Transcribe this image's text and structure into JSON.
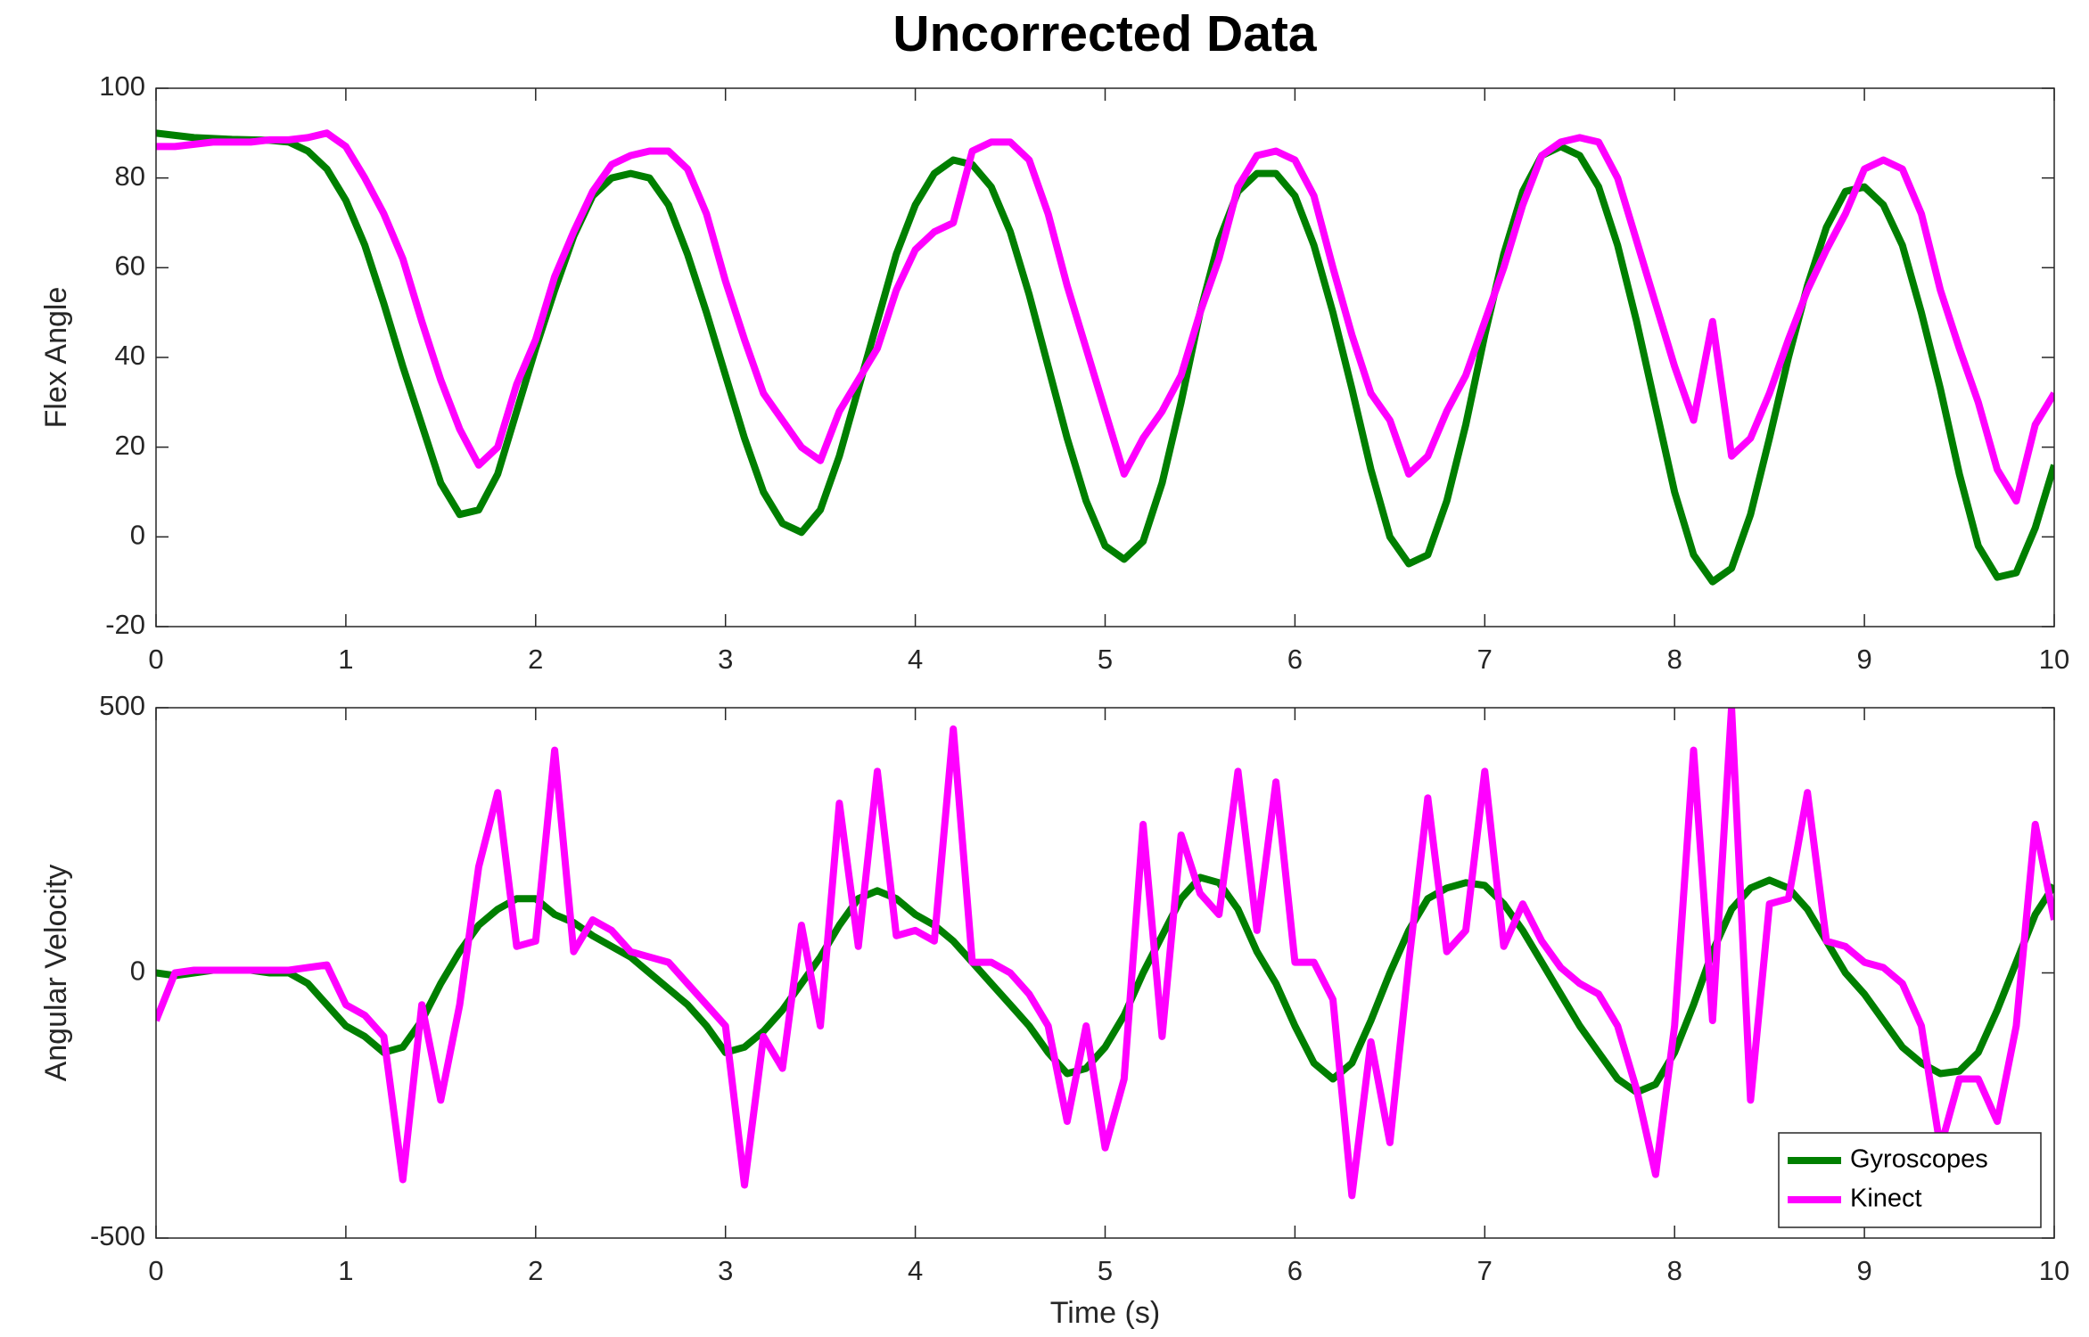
{
  "chart_data": [
    {
      "type": "line",
      "title": "Uncorrected Data",
      "ylabel": "Flex Angle",
      "x": [
        0,
        0.1,
        0.2,
        0.3,
        0.4,
        0.5,
        0.6,
        0.7,
        0.8,
        0.9,
        1,
        1.1,
        1.2,
        1.3,
        1.4,
        1.5,
        1.6,
        1.7,
        1.8,
        1.9,
        2,
        2.1,
        2.2,
        2.3,
        2.4,
        2.5,
        2.6,
        2.7,
        2.8,
        2.9,
        3,
        3.1,
        3.2,
        3.3,
        3.4,
        3.5,
        3.6,
        3.7,
        3.8,
        3.9,
        4,
        4.1,
        4.2,
        4.3,
        4.4,
        4.5,
        4.6,
        4.7,
        4.8,
        4.9,
        5,
        5.1,
        5.2,
        5.3,
        5.4,
        5.5,
        5.6,
        5.7,
        5.8,
        5.9,
        6,
        6.1,
        6.2,
        6.3,
        6.4,
        6.5,
        6.6,
        6.7,
        6.8,
        6.9,
        7,
        7.1,
        7.2,
        7.3,
        7.4,
        7.5,
        7.6,
        7.7,
        7.8,
        7.9,
        8,
        8.1,
        8.2,
        8.3,
        8.4,
        8.5,
        8.6,
        8.7,
        8.8,
        8.9,
        9,
        9.1,
        9.2,
        9.3,
        9.4,
        9.5,
        9.6,
        9.7,
        9.8,
        9.9,
        10
      ],
      "series": [
        {
          "name": "Gyroscopes",
          "color": "#007f00",
          "values": [
            90,
            89.5,
            89,
            88.8,
            88.6,
            88.5,
            88.4,
            88,
            86,
            82,
            75,
            65,
            52,
            38,
            25,
            12,
            5,
            6,
            14,
            28,
            42,
            55,
            67,
            76,
            80,
            81,
            80,
            74,
            63,
            50,
            36,
            22,
            10,
            3,
            1,
            6,
            18,
            33,
            48,
            63,
            74,
            81,
            84,
            83,
            78,
            68,
            54,
            38,
            22,
            8,
            -2,
            -5,
            -1,
            12,
            30,
            50,
            66,
            77,
            81,
            81,
            76,
            65,
            50,
            33,
            15,
            0,
            -6,
            -4,
            8,
            25,
            45,
            63,
            77,
            85,
            87,
            85,
            78,
            65,
            48,
            29,
            10,
            -4,
            -10,
            -7,
            5,
            22,
            40,
            56,
            69,
            77,
            78,
            74,
            65,
            50,
            33,
            14,
            -2,
            -9,
            -8,
            2,
            16
          ]
        },
        {
          "name": "Kinect",
          "color": "#ff00ff",
          "values": [
            87,
            87,
            87.5,
            88,
            88,
            88,
            88.5,
            88.5,
            89,
            90,
            87,
            80,
            72,
            62,
            48,
            35,
            24,
            16,
            20,
            34,
            44,
            58,
            68,
            77,
            83,
            85,
            86,
            86,
            82,
            72,
            57,
            44,
            32,
            26,
            20,
            17,
            28,
            35,
            42,
            55,
            64,
            68,
            70,
            86,
            88,
            88,
            84,
            72,
            56,
            42,
            28,
            14,
            22,
            28,
            36,
            50,
            62,
            78,
            85,
            86,
            84,
            76,
            60,
            45,
            32,
            26,
            14,
            18,
            28,
            36,
            48,
            60,
            74,
            85,
            88,
            89,
            88,
            80,
            66,
            52,
            38,
            26,
            48,
            18,
            22,
            32,
            44,
            55,
            64,
            72,
            82,
            84,
            82,
            72,
            55,
            42,
            30,
            15,
            8,
            25,
            32
          ]
        }
      ],
      "xlim": [
        0,
        10
      ],
      "xticks": [
        0,
        1,
        2,
        3,
        4,
        5,
        6,
        7,
        8,
        9,
        10
      ],
      "ylim": [
        -20,
        100
      ],
      "yticks": [
        -20,
        0,
        20,
        40,
        60,
        80,
        100
      ]
    },
    {
      "type": "line",
      "ylabel": "Angular Velocity",
      "xlabel": "Time (s)",
      "legend": "lower right",
      "x": [
        0,
        0.1,
        0.2,
        0.3,
        0.4,
        0.5,
        0.6,
        0.7,
        0.8,
        0.9,
        1,
        1.1,
        1.2,
        1.3,
        1.4,
        1.5,
        1.6,
        1.7,
        1.8,
        1.9,
        2,
        2.1,
        2.2,
        2.3,
        2.4,
        2.5,
        2.6,
        2.7,
        2.8,
        2.9,
        3,
        3.1,
        3.2,
        3.3,
        3.4,
        3.5,
        3.6,
        3.7,
        3.8,
        3.9,
        4,
        4.1,
        4.2,
        4.3,
        4.4,
        4.5,
        4.6,
        4.7,
        4.8,
        4.9,
        5,
        5.1,
        5.2,
        5.3,
        5.4,
        5.5,
        5.6,
        5.7,
        5.8,
        5.9,
        6,
        6.1,
        6.2,
        6.3,
        6.4,
        6.5,
        6.6,
        6.7,
        6.8,
        6.9,
        7,
        7.1,
        7.2,
        7.3,
        7.4,
        7.5,
        7.6,
        7.7,
        7.8,
        7.9,
        8,
        8.1,
        8.2,
        8.3,
        8.4,
        8.5,
        8.6,
        8.7,
        8.8,
        8.9,
        9,
        9.1,
        9.2,
        9.3,
        9.4,
        9.5,
        9.6,
        9.7,
        9.8,
        9.9,
        10
      ],
      "series": [
        {
          "name": "Gyroscopes",
          "color": "#007f00",
          "values": [
            0,
            -5,
            0,
            5,
            5,
            5,
            0,
            0,
            -20,
            -60,
            -100,
            -120,
            -150,
            -140,
            -90,
            -20,
            40,
            90,
            120,
            140,
            140,
            110,
            95,
            70,
            50,
            30,
            0,
            -30,
            -60,
            -100,
            -150,
            -140,
            -110,
            -70,
            -20,
            30,
            90,
            140,
            155,
            140,
            110,
            90,
            60,
            20,
            -20,
            -60,
            -100,
            -150,
            -190,
            -180,
            -140,
            -80,
            0,
            70,
            140,
            180,
            170,
            120,
            40,
            -20,
            -100,
            -170,
            -200,
            -170,
            -90,
            0,
            80,
            140,
            160,
            170,
            165,
            130,
            80,
            20,
            -40,
            -100,
            -150,
            -200,
            -225,
            -210,
            -150,
            -60,
            40,
            120,
            160,
            175,
            160,
            120,
            60,
            0,
            -40,
            -90,
            -140,
            -170,
            -190,
            -185,
            -150,
            -70,
            20,
            110,
            165
          ]
        },
        {
          "name": "Kinect",
          "color": "#ff00ff",
          "values": [
            -90,
            0,
            5,
            5,
            5,
            5,
            5,
            5,
            10,
            15,
            -60,
            -80,
            -120,
            -390,
            -60,
            -240,
            -60,
            200,
            340,
            50,
            60,
            420,
            40,
            100,
            80,
            40,
            30,
            20,
            -20,
            -60,
            -100,
            -400,
            -120,
            -180,
            90,
            -100,
            320,
            50,
            380,
            70,
            80,
            60,
            460,
            20,
            20,
            0,
            -40,
            -100,
            -280,
            -100,
            -330,
            -200,
            280,
            -120,
            260,
            150,
            110,
            380,
            80,
            360,
            20,
            20,
            -50,
            -420,
            -130,
            -320,
            20,
            330,
            40,
            80,
            380,
            50,
            130,
            60,
            10,
            -20,
            -40,
            -100,
            -220,
            -380,
            -100,
            420,
            -90,
            500,
            -240,
            130,
            140,
            340,
            60,
            50,
            20,
            10,
            -20,
            -100,
            -330,
            -200,
            -200,
            -280,
            -100,
            280,
            100
          ]
        }
      ],
      "xlim": [
        0,
        10
      ],
      "xticks": [
        0,
        1,
        2,
        3,
        4,
        5,
        6,
        7,
        8,
        9,
        10
      ],
      "ylim": [
        -500,
        500
      ],
      "yticks": [
        -500,
        0,
        500
      ]
    }
  ]
}
